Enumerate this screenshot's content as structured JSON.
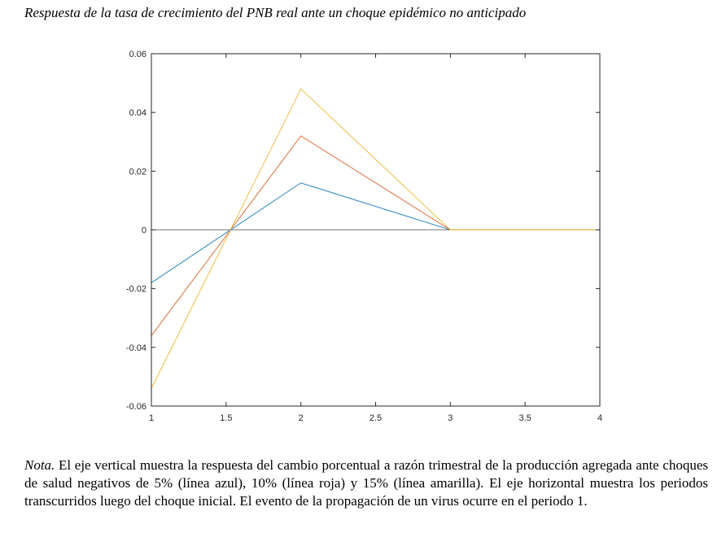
{
  "title": "Respuesta de la tasa de crecimiento del PNB real ante un choque epidémico no anticipado",
  "note": {
    "label": "Nota.",
    "text": " El eje vertical muestra la respuesta del cambio porcentual a razón trimestral de la producción agregada ante choques de salud negativos de 5% (línea azul), 10% (línea roja) y 15% (línea amarilla). El eje horizontal muestra los periodos transcurridos luego del choque inicial. El evento de la propagación de un virus ocurre en el periodo 1."
  },
  "chart_data": {
    "type": "line",
    "title": "",
    "xlabel": "",
    "ylabel": "",
    "xlim": [
      1,
      4
    ],
    "ylim": [
      -0.06,
      0.06
    ],
    "xticks": [
      1,
      1.5,
      2,
      2.5,
      3,
      3.5,
      4
    ],
    "xtick_labels": [
      "1",
      "1.5",
      "2",
      "2.5",
      "3",
      "3.5",
      "4"
    ],
    "yticks": [
      -0.06,
      -0.04,
      -0.02,
      0,
      0.02,
      0.04,
      0.06
    ],
    "ytick_labels": [
      "-0.06",
      "-0.04",
      "-0.02",
      "0",
      "0.02",
      "0.04",
      "0.06"
    ],
    "grid": false,
    "series": [
      {
        "color": "#0072BD",
        "x": [
          1,
          2,
          3,
          4
        ],
        "y": [
          -0.018,
          0.016,
          0,
          0
        ]
      },
      {
        "color": "#D95319",
        "x": [
          1,
          2,
          3,
          4
        ],
        "y": [
          -0.036,
          0.032,
          0,
          0
        ]
      },
      {
        "color": "#EDB120",
        "x": [
          1,
          2,
          3,
          4
        ],
        "y": [
          -0.054,
          0.048,
          0,
          0
        ]
      }
    ],
    "reference_line": {
      "y": 0,
      "color": "#808080"
    }
  }
}
